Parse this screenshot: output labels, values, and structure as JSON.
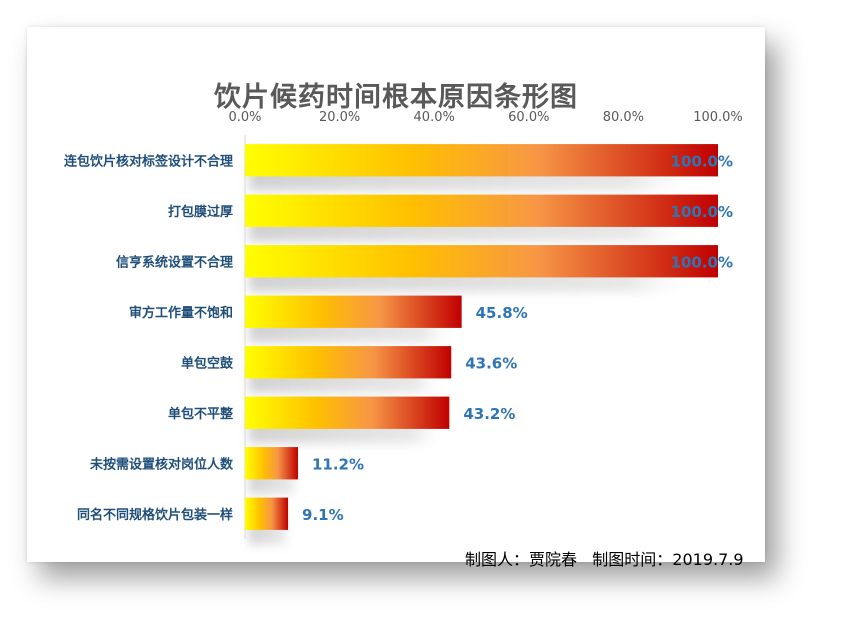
{
  "chart_data": {
    "type": "bar",
    "orientation": "horizontal",
    "title": "饮片候药时间根本原因条形图",
    "categories": [
      "连包饮片核对标签设计不合理",
      "打包膜过厚",
      "信亨系统设置不合理",
      "审方工作量不饱和",
      "单包空鼓",
      "单包不平整",
      "未按需设置核对岗位人数",
      "同名不同规格饮片包装一样"
    ],
    "values": [
      100.0,
      100.0,
      100.0,
      45.8,
      43.6,
      43.2,
      11.2,
      9.1
    ],
    "value_labels": [
      "100.0%",
      "100.0%",
      "100.0%",
      "45.8%",
      "43.6%",
      "43.2%",
      "11.2%",
      "9.1%"
    ],
    "x_ticks": [
      "0.0%",
      "20.0%",
      "40.0%",
      "60.0%",
      "80.0%",
      "100.0%"
    ],
    "xlim": [
      0,
      100
    ],
    "xaxis_position": "top",
    "gradient_colors": [
      "#ffff00",
      "#ffc000",
      "#f79646",
      "#c00000"
    ],
    "label_color": "#2e75b6",
    "category_color": "#1f4e79",
    "grid": false,
    "legend": "none"
  },
  "credit": {
    "author_label": "制图人：贾院春",
    "time_label": "制图时间：2019.7.9"
  }
}
